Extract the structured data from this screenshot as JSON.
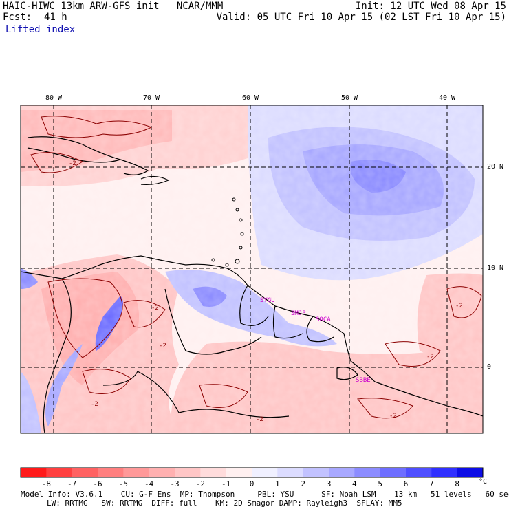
{
  "header": {
    "model_line": "HAIC-HIWC 13km ARW-GFS init   NCAR/MMM",
    "fcst_label": "Fcst:",
    "fcst_value": "41 h",
    "field_name": "Lifted index",
    "init_line": "Init: 12 UTC Wed 08 Apr 15",
    "valid_line": "Valid: 05 UTC Fri 10 Apr 15 (02 LST Fri 10 Apr 15)"
  },
  "map": {
    "lon_labels": [
      "80 W",
      "70 W",
      "60 W",
      "50 W",
      "40 W"
    ],
    "lat_labels": [
      "20 N",
      "10 N",
      "0"
    ],
    "stations": [
      "SYGU",
      "SMJP",
      "SOCA",
      "SBBE"
    ],
    "contour_labels": [
      "-2",
      "-2",
      "-2",
      "-2",
      "-2",
      "-2",
      "-2",
      "-2"
    ]
  },
  "colorbar": {
    "labels": [
      "-8",
      "-7",
      "-6",
      "-5",
      "-4",
      "-3",
      "-2",
      "-1",
      "0",
      "1",
      "2",
      "3",
      "4",
      "5",
      "6",
      "7",
      "8"
    ],
    "unit": "°C",
    "colors": [
      "#ff1a1a",
      "#ff4040",
      "#ff6262",
      "#ff7f7f",
      "#ff9999",
      "#ffb0b0",
      "#ffc6c6",
      "#ffdcdc",
      "#fff0f0",
      "#f0f0ff",
      "#dcdcff",
      "#c2c2ff",
      "#a8a8ff",
      "#8c8cff",
      "#6e6eff",
      "#4f4fff",
      "#3030ff",
      "#0d0de6"
    ]
  },
  "footer": {
    "line1": "Model Info: V3.6.1    CU: G-F Ens  MP: Thompson     PBL: YSU      SF: Noah LSM    13 km   51 levels   60 sec",
    "line2": "LW: RRTMG   SW: RRTMG  DIFF: full    KM: 2D Smagor DAMP: Rayleigh3  SFLAY: MM5"
  }
}
